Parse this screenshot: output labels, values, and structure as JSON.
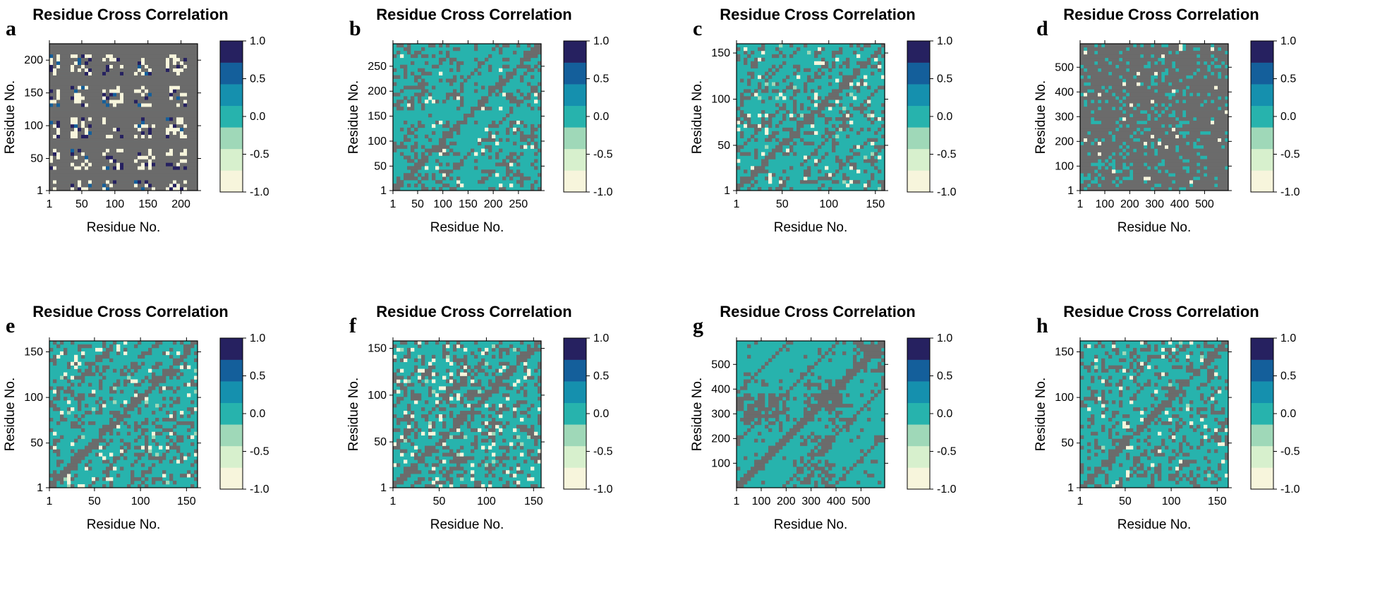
{
  "figure": {
    "colors": {
      "scale": [
        "#F7F5DC",
        "#D7F0CD",
        "#9FD8B8",
        "#27B3AD",
        "#1590AE",
        "#145F9B",
        "#262160"
      ],
      "masked": "#6B6B6B",
      "border": "#000000"
    }
  },
  "chart_data": [
    {
      "type": "heatmap",
      "panel": "a",
      "title": "Residue Cross Correlation",
      "xlabel": "Residue No.",
      "ylabel": "Residue No.",
      "xlim": [
        1,
        225
      ],
      "ylim": [
        1,
        225
      ],
      "xticks": [
        "1",
        "50",
        "100",
        "150",
        "200"
      ],
      "xtick_values": [
        1,
        50,
        100,
        150,
        200
      ],
      "yticks": [
        "1",
        "50",
        "100",
        "150",
        "200"
      ],
      "ytick_values": [
        1,
        50,
        100,
        150,
        200
      ],
      "colorbar": {
        "levels": [
          -1.0,
          -0.5,
          0.0,
          0.5,
          1.0
        ],
        "labels": [
          "1.0",
          "0.5",
          "0.0",
          "-0.5",
          "-1.0"
        ]
      },
      "style": "block-anticorrelated"
    },
    {
      "type": "heatmap",
      "panel": "b",
      "title": "Residue Cross Correlation",
      "xlabel": "Residue No.",
      "ylabel": "Residue No.",
      "xlim": [
        1,
        295
      ],
      "ylim": [
        1,
        295
      ],
      "xticks": [
        "1",
        "50",
        "100",
        "150",
        "200",
        "250"
      ],
      "xtick_values": [
        1,
        50,
        100,
        150,
        200,
        250
      ],
      "yticks": [
        "1",
        "50",
        "100",
        "150",
        "200",
        "250"
      ],
      "ytick_values": [
        1,
        50,
        100,
        150,
        200,
        250
      ],
      "colorbar": {
        "levels": [
          -1.0,
          -0.5,
          0.0,
          0.5,
          1.0
        ],
        "labels": [
          "1.0",
          "0.5",
          "0.0",
          "-0.5",
          "-1.0"
        ]
      },
      "style": "teal-dominant"
    },
    {
      "type": "heatmap",
      "panel": "c",
      "title": "Residue Cross Correlation",
      "xlabel": "Residue No.",
      "ylabel": "Residue No.",
      "xlim": [
        1,
        160
      ],
      "ylim": [
        1,
        160
      ],
      "xticks": [
        "1",
        "50",
        "100",
        "150"
      ],
      "xtick_values": [
        1,
        50,
        100,
        150
      ],
      "yticks": [
        "1",
        "50",
        "100",
        "150"
      ],
      "ytick_values": [
        1,
        50,
        100,
        150
      ],
      "colorbar": {
        "levels": [
          -1.0,
          -0.5,
          0.0,
          0.5,
          1.0
        ],
        "labels": [
          "1.0",
          "0.5",
          "0.0",
          "-0.5",
          "-1.0"
        ]
      },
      "style": "teal-patchy"
    },
    {
      "type": "heatmap",
      "panel": "d",
      "title": "Residue Cross Correlation",
      "xlabel": "Residue No.",
      "ylabel": "Residue No.",
      "xlim": [
        1,
        595
      ],
      "ylim": [
        1,
        595
      ],
      "xticks": [
        "1",
        "100",
        "200",
        "300",
        "400",
        "500"
      ],
      "xtick_values": [
        1,
        100,
        200,
        300,
        400,
        500
      ],
      "yticks": [
        "1",
        "100",
        "200",
        "300",
        "400",
        "500"
      ],
      "ytick_values": [
        1,
        100,
        200,
        300,
        400,
        500
      ],
      "colorbar": {
        "levels": [
          -1.0,
          -0.5,
          0.0,
          0.5,
          1.0
        ],
        "labels": [
          "1.0",
          "0.5",
          "0.0",
          "-0.5",
          "-1.0"
        ]
      },
      "style": "grey-dominant"
    },
    {
      "type": "heatmap",
      "panel": "e",
      "title": "Residue Cross Correlation",
      "xlabel": "Residue No.",
      "ylabel": "Residue No.",
      "xlim": [
        1,
        162
      ],
      "ylim": [
        1,
        162
      ],
      "xticks": [
        "1",
        "50",
        "100",
        "150"
      ],
      "xtick_values": [
        1,
        50,
        100,
        150
      ],
      "yticks": [
        "1",
        "50",
        "100",
        "150"
      ],
      "ytick_values": [
        1,
        50,
        100,
        150
      ],
      "colorbar": {
        "levels": [
          -1.0,
          -0.5,
          0.0,
          0.5,
          1.0
        ],
        "labels": [
          "1.0",
          "0.5",
          "0.0",
          "-0.5",
          "-1.0"
        ]
      },
      "style": "teal-patchy"
    },
    {
      "type": "heatmap",
      "panel": "f",
      "title": "Residue Cross Correlation",
      "xlabel": "Residue No.",
      "ylabel": "Residue No.",
      "xlim": [
        1,
        158
      ],
      "ylim": [
        1,
        158
      ],
      "xticks": [
        "1",
        "50",
        "100",
        "150"
      ],
      "xtick_values": [
        1,
        50,
        100,
        150
      ],
      "yticks": [
        "1",
        "50",
        "100",
        "150"
      ],
      "ytick_values": [
        1,
        50,
        100,
        150
      ],
      "colorbar": {
        "levels": [
          -1.0,
          -0.5,
          0.0,
          0.5,
          1.0
        ],
        "labels": [
          "1.0",
          "0.5",
          "0.0",
          "-0.5",
          "-1.0"
        ]
      },
      "style": "teal-patchy-dense"
    },
    {
      "type": "heatmap",
      "panel": "g",
      "title": "Residue Cross Correlation",
      "xlabel": "Residue No.",
      "ylabel": "Residue No.",
      "xlim": [
        1,
        595
      ],
      "ylim": [
        1,
        595
      ],
      "xticks": [
        "1",
        "100",
        "200",
        "300",
        "400",
        "500"
      ],
      "xtick_values": [
        1,
        100,
        200,
        300,
        400,
        500
      ],
      "yticks": [
        "100",
        "200",
        "300",
        "400",
        "500"
      ],
      "ytick_values": [
        100,
        200,
        300,
        400,
        500
      ],
      "colorbar": {
        "levels": [
          -1.0,
          -0.5,
          0.0,
          0.5,
          1.0
        ],
        "labels": [
          "1.0",
          "0.5",
          "0.0",
          "-0.5",
          "-1.0"
        ]
      },
      "style": "teal-blocks"
    },
    {
      "type": "heatmap",
      "panel": "h",
      "title": "Residue Cross Correlation",
      "xlabel": "Residue No.",
      "ylabel": "Residue No.",
      "xlim": [
        1,
        162
      ],
      "ylim": [
        1,
        162
      ],
      "xticks": [
        "1",
        "50",
        "100",
        "150"
      ],
      "xtick_values": [
        1,
        50,
        100,
        150
      ],
      "yticks": [
        "1",
        "50",
        "100",
        "150"
      ],
      "ytick_values": [
        1,
        50,
        100,
        150
      ],
      "colorbar": {
        "levels": [
          -1.0,
          -0.5,
          0.0,
          0.5,
          1.0
        ],
        "labels": [
          "1.0",
          "0.5",
          "0.0",
          "-0.5",
          "-1.0"
        ]
      },
      "style": "teal-patchy"
    }
  ]
}
